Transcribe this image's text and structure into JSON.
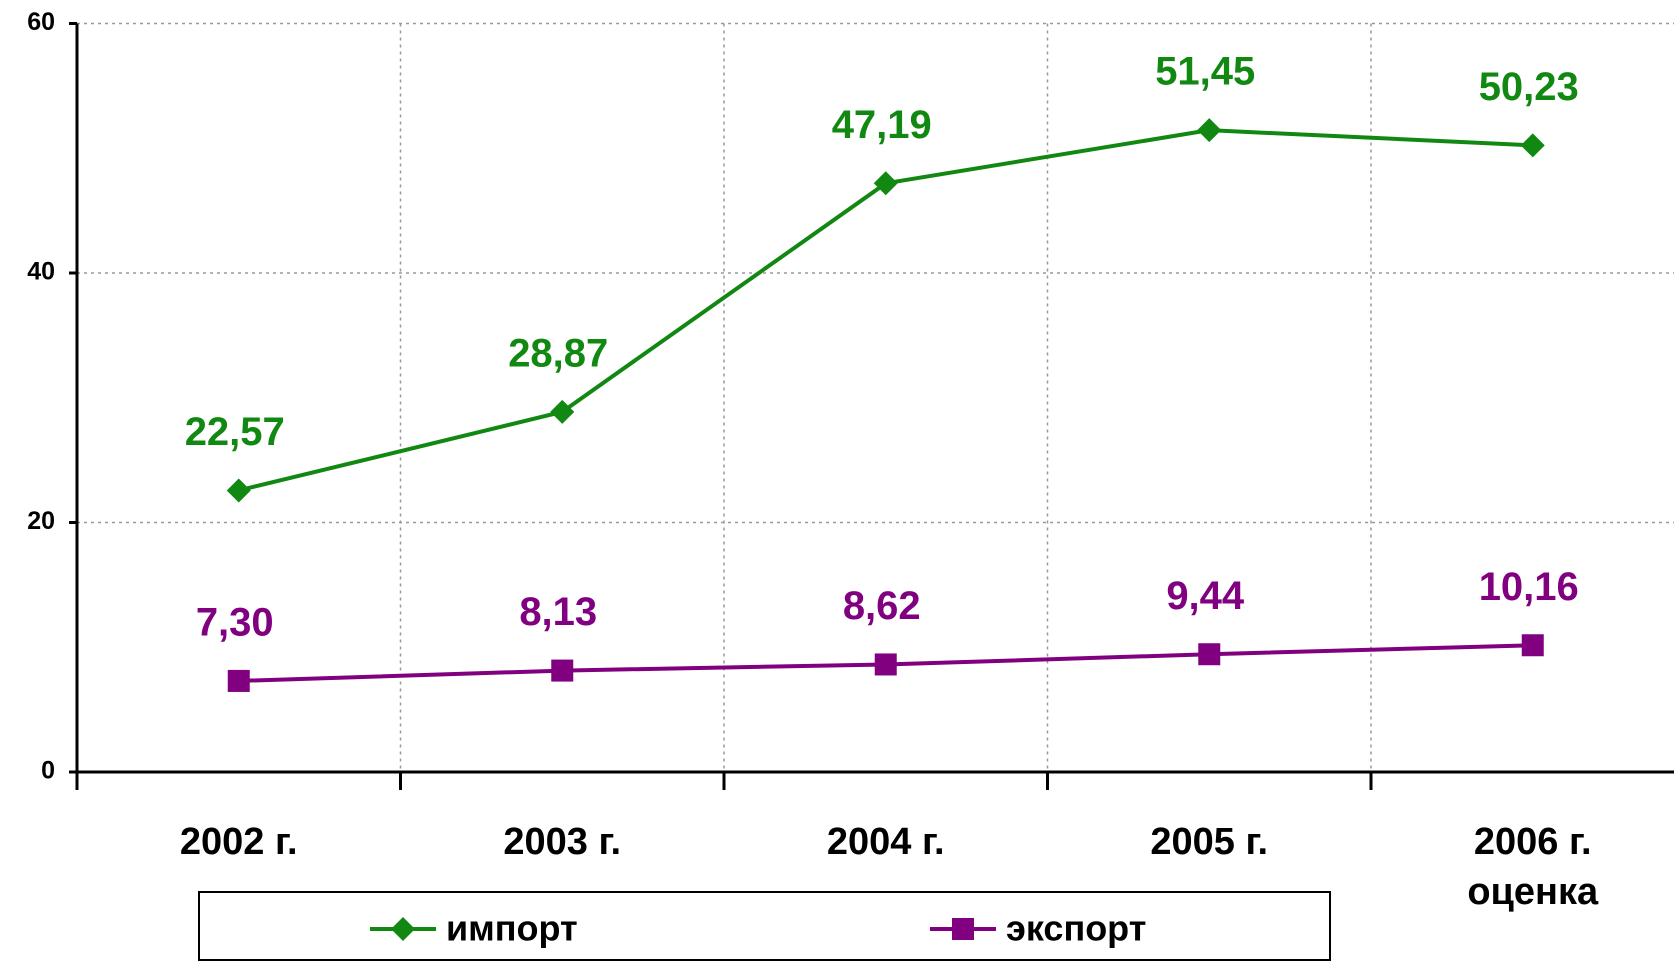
{
  "chart_data": {
    "type": "line",
    "categories": [
      "2002 г.",
      "2003 г.",
      "2004 г.",
      "2005 г.",
      "2006 г.\nоценка"
    ],
    "series": [
      {
        "name": "импорт",
        "color": "#118811",
        "marker": "diamond",
        "values": [
          22.57,
          28.87,
          47.19,
          51.45,
          50.23
        ],
        "value_labels": [
          "22,57",
          "28,87",
          "47,19",
          "51,45",
          "50,23"
        ]
      },
      {
        "name": "экспорт",
        "color": "#800080",
        "marker": "square",
        "values": [
          7.3,
          8.13,
          8.62,
          9.44,
          10.16
        ],
        "value_labels": [
          "7,30",
          "8,13",
          "8,62",
          "9,44",
          "10,16"
        ]
      }
    ],
    "ylim": [
      0,
      60
    ],
    "yticks": [
      0,
      20,
      40,
      60
    ],
    "grid": true,
    "legend": "bottom"
  }
}
